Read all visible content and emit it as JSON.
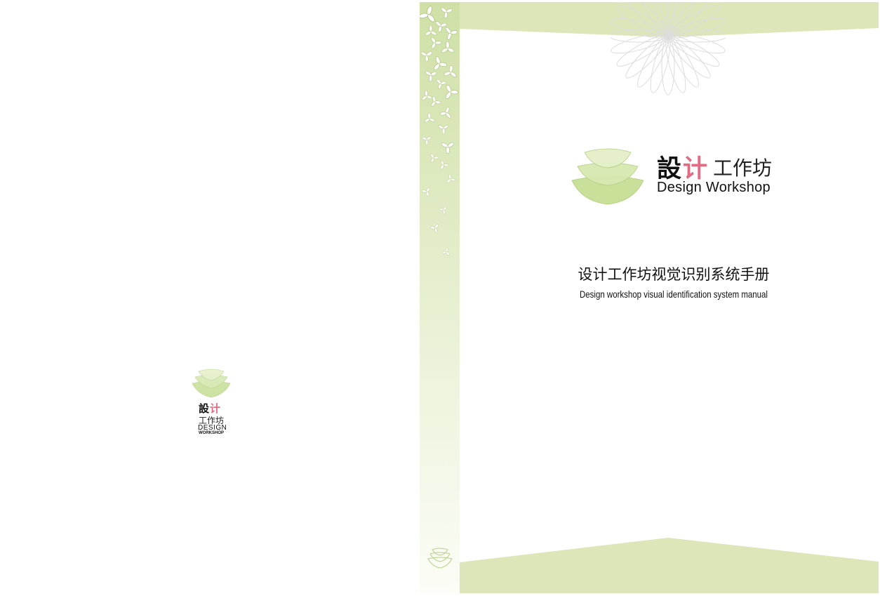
{
  "brand": {
    "name_cn_part1": "設",
    "name_cn_part2": "计",
    "name_cn_sub": "工作坊",
    "name_en": "Design Workshop"
  },
  "cover": {
    "title_cn": "设计工作坊视觉识别系统手册",
    "title_en": "Design workshop visual identification system manual"
  },
  "back_logo": {
    "cn_part1": "設",
    "cn_part2": "计",
    "cn_sub": "工作坊",
    "en_line1": "DESIGN",
    "en_line2": "WORKSHOP"
  },
  "colors": {
    "brand_green": "#cfe0a6",
    "band_green": "#dde6b8",
    "accent_pink": "#e26a83",
    "text": "#111111"
  },
  "icons": [
    "layered-leaf-logo-icon",
    "propeller-pattern-icon",
    "flower-ornament-icon"
  ]
}
